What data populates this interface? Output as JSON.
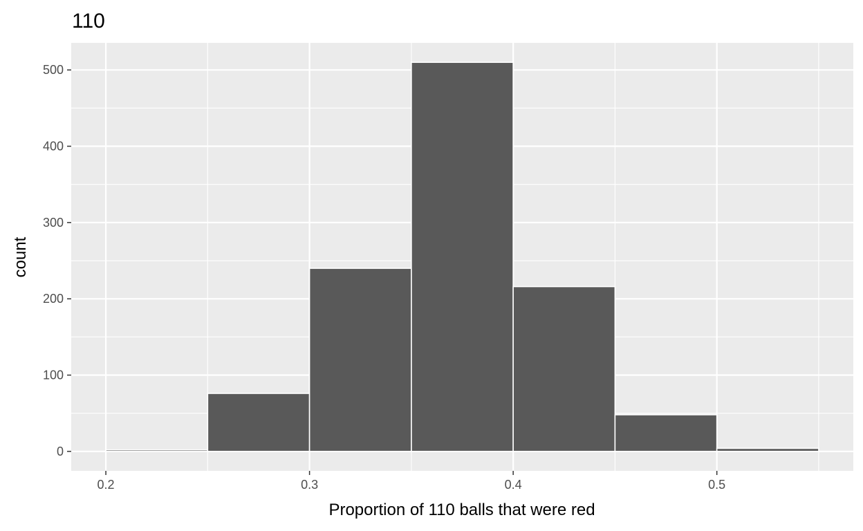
{
  "chart_data": {
    "type": "bar",
    "title": "110",
    "xlabel": "Proportion of 110 balls that were red",
    "ylabel": "count",
    "bins": [
      {
        "start": 0.2,
        "end": 0.25,
        "count": 2
      },
      {
        "start": 0.25,
        "end": 0.3,
        "count": 76
      },
      {
        "start": 0.3,
        "end": 0.35,
        "count": 240
      },
      {
        "start": 0.35,
        "end": 0.4,
        "count": 510
      },
      {
        "start": 0.4,
        "end": 0.45,
        "count": 216
      },
      {
        "start": 0.45,
        "end": 0.5,
        "count": 48
      },
      {
        "start": 0.5,
        "end": 0.55,
        "count": 4
      }
    ],
    "xlim": [
      0.183,
      0.567
    ],
    "ylim": [
      -25.5,
      535.5
    ],
    "x_ticks": [
      0.2,
      0.3,
      0.4,
      0.5
    ],
    "x_tick_labels": [
      "0.2",
      "0.3",
      "0.4",
      "0.5"
    ],
    "x_minor_ticks": [
      0.25,
      0.35,
      0.45,
      0.55
    ],
    "y_ticks": [
      0,
      100,
      200,
      300,
      400,
      500
    ],
    "y_tick_labels": [
      "0",
      "100",
      "200",
      "300",
      "400",
      "500"
    ],
    "y_minor_ticks": [
      50,
      150,
      250,
      350,
      450
    ],
    "grid": true,
    "colors": {
      "panel_background": "#ebebeb",
      "grid_line": "#ffffff",
      "bar_fill": "#595959",
      "bar_outline": "#ffffff",
      "tick_text": "#4d4d4d",
      "tick_mark": "#333333"
    }
  }
}
